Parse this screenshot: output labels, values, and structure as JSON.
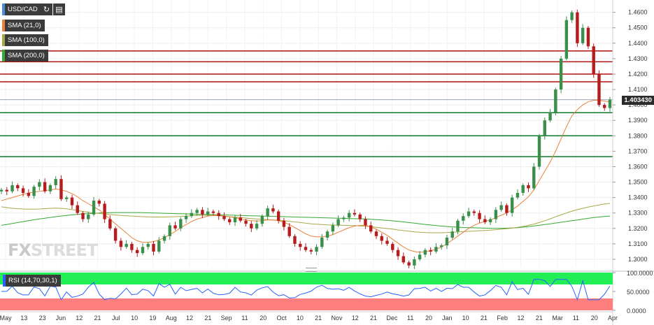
{
  "toolbar": {
    "symbol": "USD/CAD",
    "refresh_icon": "refresh-icon",
    "calendar_icon": "calendar-icon"
  },
  "indicators": [
    {
      "label": "SMA (21,0)",
      "color": "#e8823a"
    },
    {
      "label": "SMA (100,0)",
      "color": "#a8a845"
    },
    {
      "label": "SMA (200,0)",
      "color": "#33aa33"
    }
  ],
  "watermark": {
    "fx": "FX",
    "street": "STREET"
  },
  "current_price": "1.403430",
  "rsi": {
    "label": "RSI (14,70,30,1)",
    "ticks": [
      "100.0000",
      "50.0000",
      "0.0000"
    ]
  },
  "chart_data": {
    "type": "candlestick",
    "symbol": "USD/CAD",
    "y_ticks": [
      "1.4600",
      "1.4500",
      "1.4400",
      "1.4300",
      "1.4200",
      "1.4100",
      "1.4000",
      "1.3900",
      "1.3800",
      "1.3700",
      "1.3600",
      "1.3500",
      "1.3400",
      "1.3300",
      "1.3200",
      "1.3100",
      "1.3000"
    ],
    "ylim": [
      1.295,
      1.468
    ],
    "x_ticks": [
      "May",
      "13",
      "23",
      "Jun",
      "12",
      "21",
      "Jul",
      "10",
      "19",
      "Aug",
      "12",
      "21",
      "Sep",
      "11",
      "20",
      "Oct",
      "10",
      "21",
      "Nov",
      "12",
      "21",
      "Dec",
      "11",
      "20",
      "Jan",
      "10",
      "21",
      "Feb",
      "12",
      "21",
      "Mar",
      "11",
      "20",
      "Apr"
    ],
    "resistance_levels": [
      1.435,
      1.428,
      1.42,
      1.415
    ],
    "support_levels": [
      1.395,
      1.38,
      1.3665
    ],
    "last_price": 1.40343,
    "close_series": [
      1.345,
      1.344,
      1.348,
      1.346,
      1.343,
      1.341,
      1.347,
      1.35,
      1.344,
      1.348,
      1.352,
      1.339,
      1.34,
      1.335,
      1.33,
      1.326,
      1.329,
      1.338,
      1.336,
      1.326,
      1.32,
      1.312,
      1.308,
      1.31,
      1.306,
      1.304,
      1.308,
      1.31,
      1.305,
      1.312,
      1.315,
      1.322,
      1.32,
      1.326,
      1.328,
      1.33,
      1.332,
      1.329,
      1.331,
      1.33,
      1.328,
      1.326,
      1.324,
      1.327,
      1.325,
      1.323,
      1.32,
      1.323,
      1.328,
      1.333,
      1.331,
      1.325,
      1.321,
      1.315,
      1.31,
      1.308,
      1.306,
      1.305,
      1.308,
      1.314,
      1.318,
      1.322,
      1.326,
      1.327,
      1.33,
      1.329,
      1.326,
      1.322,
      1.318,
      1.315,
      1.312,
      1.31,
      1.306,
      1.302,
      1.298,
      1.296,
      1.3,
      1.303,
      1.306,
      1.305,
      1.308,
      1.309,
      1.314,
      1.318,
      1.325,
      1.328,
      1.331,
      1.33,
      1.326,
      1.324,
      1.326,
      1.332,
      1.335,
      1.33,
      1.34,
      1.343,
      1.348,
      1.346,
      1.36,
      1.38,
      1.39,
      1.395,
      1.41,
      1.43,
      1.455,
      1.46,
      1.44,
      1.45,
      1.438,
      1.42,
      1.4,
      1.398,
      1.4034
    ],
    "sma21": [
      1.338,
      1.339,
      1.34,
      1.341,
      1.342,
      1.343,
      1.3435,
      1.344,
      1.3445,
      1.345,
      1.3455,
      1.345,
      1.344,
      1.3425,
      1.3405,
      1.338,
      1.336,
      1.334,
      1.332,
      1.329,
      1.326,
      1.323,
      1.32,
      1.317,
      1.314,
      1.312,
      1.311,
      1.311,
      1.3115,
      1.3125,
      1.314,
      1.316,
      1.318,
      1.3205,
      1.3225,
      1.3245,
      1.326,
      1.327,
      1.328,
      1.3285,
      1.3285,
      1.328,
      1.3275,
      1.327,
      1.326,
      1.3255,
      1.325,
      1.3248,
      1.325,
      1.3255,
      1.3255,
      1.325,
      1.324,
      1.3225,
      1.3205,
      1.3185,
      1.3165,
      1.315,
      1.3145,
      1.3145,
      1.315,
      1.316,
      1.3175,
      1.319,
      1.3205,
      1.3215,
      1.322,
      1.322,
      1.321,
      1.3195,
      1.3175,
      1.3155,
      1.313,
      1.3105,
      1.308,
      1.306,
      1.305,
      1.3045,
      1.3048,
      1.3055,
      1.3065,
      1.308,
      1.31,
      1.3125,
      1.315,
      1.3175,
      1.32,
      1.322,
      1.3235,
      1.3245,
      1.3255,
      1.327,
      1.3285,
      1.33,
      1.332,
      1.3345,
      1.3375,
      1.3405,
      1.345,
      1.351,
      1.357,
      1.363,
      1.37,
      1.378,
      1.386,
      1.393,
      1.397,
      1.4,
      1.402,
      1.403,
      1.403,
      1.4025,
      1.402
    ],
    "sma100": [
      1.334,
      1.3335,
      1.333,
      1.3328,
      1.3326,
      1.3325,
      1.3325,
      1.3326,
      1.3328,
      1.333,
      1.3332,
      1.333,
      1.3327,
      1.3322,
      1.3316,
      1.331,
      1.3305,
      1.33,
      1.3297,
      1.3293,
      1.329,
      1.3287,
      1.3284,
      1.3282,
      1.328,
      1.3278,
      1.3276,
      1.3275,
      1.3274,
      1.3274,
      1.3274,
      1.3275,
      1.3276,
      1.3278,
      1.328,
      1.3282,
      1.3284,
      1.3285,
      1.3285,
      1.3284,
      1.3282,
      1.3279,
      1.3276,
      1.3273,
      1.327,
      1.3267,
      1.3264,
      1.3261,
      1.3259,
      1.3257,
      1.3255,
      1.3253,
      1.325,
      1.3246,
      1.3242,
      1.3238,
      1.3234,
      1.323,
      1.3227,
      1.3225,
      1.3223,
      1.3222,
      1.3221,
      1.322,
      1.3219,
      1.3218,
      1.3216,
      1.3214,
      1.3211,
      1.3207,
      1.3203,
      1.3199,
      1.3195,
      1.319,
      1.3186,
      1.3182,
      1.3178,
      1.3175,
      1.3173,
      1.3172,
      1.3172,
      1.3172,
      1.3173,
      1.3175,
      1.3177,
      1.3179,
      1.3181,
      1.3183,
      1.3185,
      1.3187,
      1.3189,
      1.3192,
      1.3195,
      1.3198,
      1.3202,
      1.3207,
      1.3213,
      1.322,
      1.3228,
      1.3238,
      1.325,
      1.3262,
      1.3275,
      1.3288,
      1.33,
      1.3312,
      1.3322,
      1.333,
      1.3338,
      1.3345,
      1.3352,
      1.3358,
      1.3362
    ],
    "sma200": [
      1.322,
      1.3226,
      1.3232,
      1.3238,
      1.3244,
      1.325,
      1.3256,
      1.3261,
      1.3266,
      1.3271,
      1.3276,
      1.328,
      1.3284,
      1.3288,
      1.3291,
      1.3294,
      1.3296,
      1.3298,
      1.33,
      1.3301,
      1.3302,
      1.3303,
      1.3303,
      1.3303,
      1.3303,
      1.3303,
      1.3302,
      1.3301,
      1.33,
      1.3299,
      1.3298,
      1.3297,
      1.3296,
      1.3295,
      1.3294,
      1.3293,
      1.3292,
      1.3291,
      1.329,
      1.3289,
      1.3288,
      1.3287,
      1.3286,
      1.3285,
      1.3284,
      1.3283,
      1.3282,
      1.3281,
      1.328,
      1.3279,
      1.3278,
      1.3277,
      1.3276,
      1.3275,
      1.3274,
      1.3273,
      1.3272,
      1.3271,
      1.327,
      1.3269,
      1.3268,
      1.3267,
      1.3266,
      1.3265,
      1.3264,
      1.3263,
      1.3262,
      1.3261,
      1.3259,
      1.3257,
      1.3255,
      1.3252,
      1.3249,
      1.3246,
      1.3242,
      1.3238,
      1.3234,
      1.323,
      1.3226,
      1.3222,
      1.3218,
      1.3215,
      1.3212,
      1.321,
      1.3208,
      1.3206,
      1.3205,
      1.3204,
      1.3203,
      1.3202,
      1.3201,
      1.3201,
      1.3201,
      1.3202,
      1.3203,
      1.3205,
      1.3208,
      1.3212,
      1.3216,
      1.322,
      1.3225,
      1.323,
      1.3235,
      1.324,
      1.3245,
      1.325,
      1.3255,
      1.326,
      1.3265,
      1.327,
      1.3274,
      1.3277,
      1.328
    ]
  }
}
